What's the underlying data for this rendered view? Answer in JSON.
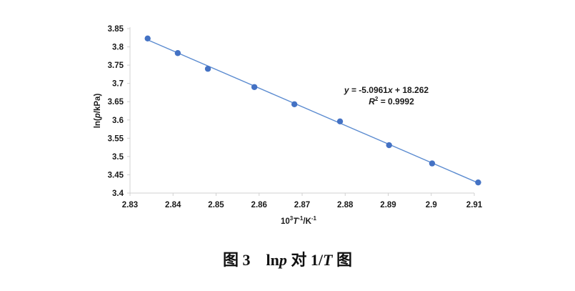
{
  "chart_data": {
    "type": "scatter",
    "xlabel": "10³T⁻¹/K⁻¹",
    "ylabel": "ln(p/kPa)",
    "xlim": [
      2.83,
      2.91
    ],
    "ylim": [
      3.4,
      3.85
    ],
    "x_ticks": [
      "2.83",
      "2.84",
      "2.85",
      "2.86",
      "2.87",
      "2.88",
      "2.89",
      "2.9",
      "2.91"
    ],
    "y_ticks": [
      "3.85",
      "3.8",
      "3.75",
      "3.7",
      "3.65",
      "3.6",
      "3.55",
      "3.5",
      "3.45",
      "3.4"
    ],
    "points": [
      {
        "x": 2.8341,
        "y": 3.823
      },
      {
        "x": 2.8411,
        "y": 3.783
      },
      {
        "x": 2.8481,
        "y": 3.74
      },
      {
        "x": 2.8589,
        "y": 3.69
      },
      {
        "x": 2.8682,
        "y": 3.643
      },
      {
        "x": 2.8788,
        "y": 3.596
      },
      {
        "x": 2.8902,
        "y": 3.531
      },
      {
        "x": 2.9002,
        "y": 3.481
      },
      {
        "x": 2.9109,
        "y": 3.429
      }
    ],
    "trendline": {
      "slope": -5.0961,
      "intercept": 18.262,
      "x_range": [
        2.8341,
        2.9109
      ]
    },
    "equation_text": "y = -5.0961x + 18.262",
    "r2_text": "R² = 0.9992",
    "grid": false,
    "colors": {
      "marker": "#4472C4",
      "line": "#5B8BD0",
      "axis": "#d0d0d0"
    }
  },
  "caption": {
    "prefix": "图 3",
    "part1": "ln",
    "p": "p",
    "part2": " 对 1/",
    "T": "T",
    "part3": " 图"
  }
}
